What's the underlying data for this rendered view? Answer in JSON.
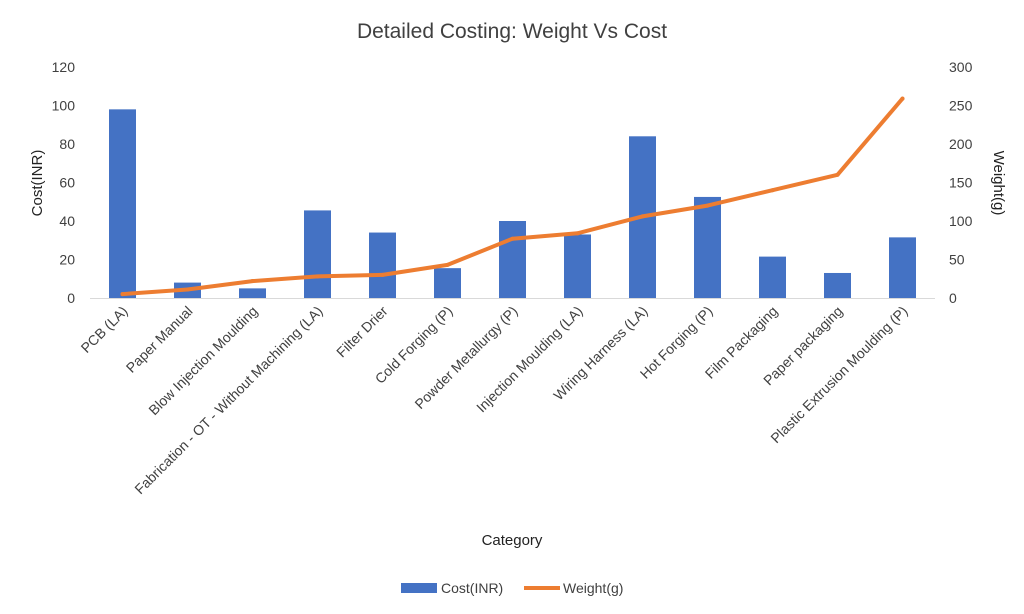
{
  "chart_data": {
    "type": "bar",
    "title": "Detailed Costing: Weight Vs Cost",
    "xlabel": "Category",
    "ylabel": "Cost(INR)",
    "y2label": "Weight(g)",
    "ylim": [
      0,
      120
    ],
    "y2lim": [
      0,
      300
    ],
    "yticks": [
      "0",
      "20",
      "40",
      "60",
      "80",
      "100",
      "120"
    ],
    "y2ticks": [
      "0",
      "50",
      "100",
      "150",
      "200",
      "250",
      "300"
    ],
    "grid": false,
    "legend_position": "bottom",
    "categories": [
      "PCB (LA)",
      "Paper Manual",
      "Blow Injection Moulding",
      "Fabrication - OT - Without Machining (LA)",
      "Filter Drier",
      "Cold Forging (P)",
      "Powder Metallurgy (P)",
      "Injection Moulding (LA)",
      "Wiring Harness  (LA)",
      "Hot Forging (P)",
      "Film Packaging",
      "Paper packaging",
      "Plastic Extrusion Moulding (P)"
    ],
    "series": [
      {
        "name": "Cost(INR)",
        "type": "bar",
        "axis": "left",
        "color": "#4472C4",
        "values": [
          98,
          8,
          5,
          45.5,
          34,
          15.5,
          40,
          33,
          84,
          52.5,
          21.5,
          13,
          31.5
        ]
      },
      {
        "name": "Weight(g)",
        "type": "line",
        "axis": "right",
        "color": "#ED7D31",
        "values": [
          5,
          11,
          22,
          28,
          30,
          43,
          77,
          84,
          106,
          120,
          140,
          160,
          259
        ]
      }
    ]
  }
}
